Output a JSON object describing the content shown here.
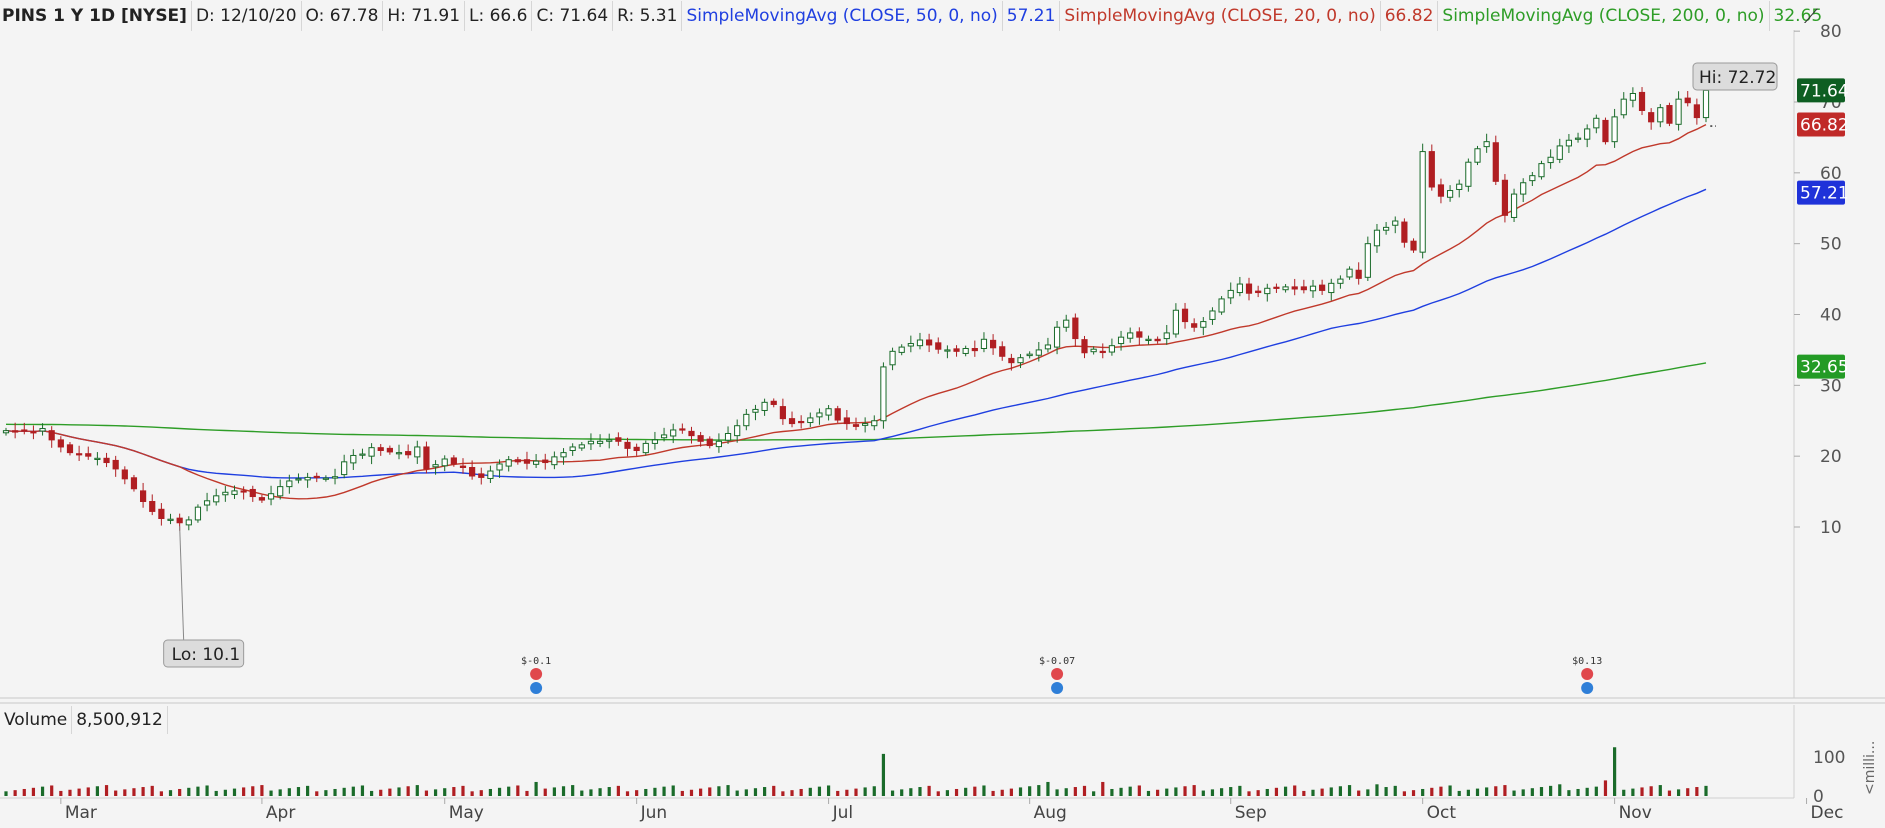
{
  "header": {
    "symbol": "PINS 1 Y 1D [NYSE]",
    "date": "D: 12/10/20",
    "open": "O: 67.78",
    "high": "H: 71.91",
    "low": "L: 66.6",
    "close": "C: 71.64",
    "range": "R: 5.31",
    "sma50_label": "SimpleMovingAvg (CLOSE, 50, 0, no)",
    "sma50_value": "57.21",
    "sma20_label": "SimpleMovingAvg (CLOSE, 20, 0, no)",
    "sma20_value": "66.82",
    "sma200_label": "SimpleMovingAvg (CLOSE, 200, 0, no)",
    "sma200_value": "32.65"
  },
  "colors": {
    "up": "#1a6b2a",
    "down": "#b01e22",
    "sma20": "#c0392b",
    "sma50": "#1f3fe0",
    "sma200": "#2e9d27",
    "close_badge": "#0e5e22",
    "sma20_badge": "#c02a28",
    "sma50_badge": "#1f32d9",
    "sma200_badge": "#239b25"
  },
  "chart_data": {
    "type": "candlestick",
    "ylim": [
      5,
      82
    ],
    "y_ticks": [
      10,
      20,
      30,
      40,
      50,
      60,
      70,
      80
    ],
    "x_months": [
      "Mar",
      "Apr",
      "May",
      "Jun",
      "Jul",
      "Aug",
      "Sep",
      "Oct",
      "Nov",
      "Dec"
    ],
    "closes": [
      23.6,
      23.4,
      23.6,
      23.4,
      23.9,
      22.3,
      21.3,
      20.5,
      20.2,
      20.0,
      19.7,
      19.1,
      18.2,
      16.8,
      15.4,
      13.6,
      12.2,
      11.2,
      11.1,
      10.6,
      11.0,
      12.8,
      13.7,
      14.4,
      14.9,
      15.1,
      15.0,
      14.3,
      13.8,
      14.7,
      15.7,
      16.5,
      16.8,
      17.0,
      17.1,
      16.9,
      17.1,
      19.2,
      20.1,
      20.3,
      21.2,
      20.8,
      20.6,
      20.5,
      20.2,
      21.3,
      18.2,
      18.8,
      19.6,
      18.9,
      18.4,
      17.2,
      17.0,
      17.9,
      18.9,
      19.5,
      19.2,
      19.0,
      19.3,
      19.1,
      19.9,
      20.5,
      21.3,
      21.6,
      22.1,
      22.1,
      22.3,
      22.1,
      21.1,
      20.8,
      21.8,
      22.3,
      23.0,
      23.7,
      23.8,
      22.9,
      22.1,
      21.5,
      22.1,
      23.2,
      24.3,
      25.9,
      26.6,
      27.6,
      27.3,
      25.3,
      24.6,
      24.9,
      25.4,
      26.1,
      26.7,
      25.1,
      24.6,
      24.2,
      24.6,
      25.0,
      32.6,
      34.8,
      35.4,
      35.9,
      36.4,
      35.7,
      35.1,
      35.0,
      34.8,
      35.2,
      34.9,
      36.5,
      35.3,
      34.1,
      33.2,
      33.9,
      34.4,
      35.0,
      35.7,
      38.2,
      39.2,
      36.6,
      34.6,
      35.1,
      34.7,
      35.6,
      36.8,
      37.4,
      36.8,
      36.5,
      36.3,
      37.4,
      40.6,
      39.0,
      38.2,
      39.0,
      40.5,
      42.2,
      43.4,
      44.3,
      43.0,
      43.1,
      43.7,
      43.8,
      43.9,
      43.6,
      43.5,
      44.0,
      43.4,
      44.4,
      45.0,
      46.4,
      45.1,
      50.0,
      51.9,
      52.3,
      53.2,
      50.2,
      49.1,
      63.0,
      58.0,
      56.7,
      57.5,
      58.4,
      61.5,
      63.4,
      64.4,
      58.8,
      54.0,
      57.0,
      58.6,
      59.6,
      61.3,
      62.2,
      63.8,
      64.6,
      64.9,
      66.2,
      67.7,
      64.4,
      67.9,
      70.4,
      71.2,
      68.8,
      67.2,
      69.2,
      67.0,
      70.4,
      69.9,
      67.8,
      71.64
    ],
    "month_start_index": [
      6,
      28,
      48,
      69,
      90,
      112,
      134,
      155,
      176,
      197
    ],
    "volume_label": "Volume",
    "volume_value": "8,500,912",
    "volume_ticks": [
      0,
      100
    ],
    "volume_axis_label": "<milli...",
    "annotations": {
      "lo_label": "Lo: 10.1",
      "hi_label": "Hi: 72.72",
      "earnings": [
        {
          "label": "$-0.1",
          "index": 58
        },
        {
          "label": "$-0.07",
          "index": 115
        },
        {
          "label": "$0.13",
          "index": 173
        }
      ]
    },
    "badges": {
      "close": "71.64",
      "sma20": "66.82",
      "sma50": "57.21",
      "sma200": "32.65"
    }
  }
}
